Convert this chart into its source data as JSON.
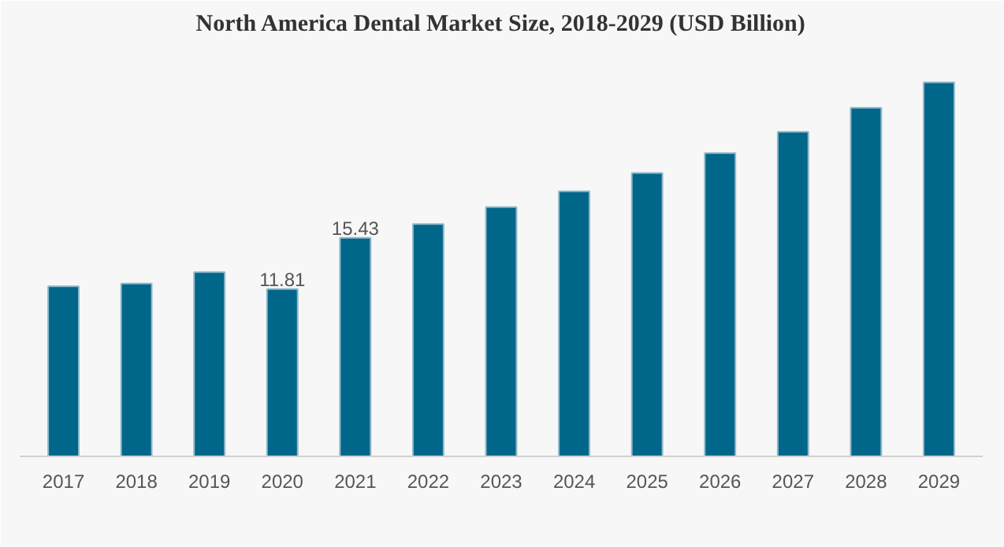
{
  "chart_data": {
    "type": "bar",
    "title": "North America Dental Market Size, 2018-2029 (USD Billion)",
    "categories": [
      "2017",
      "2018",
      "2019",
      "2020",
      "2021",
      "2022",
      "2023",
      "2024",
      "2025",
      "2026",
      "2027",
      "2028",
      "2029"
    ],
    "values": [
      12.0,
      12.2,
      13.0,
      11.81,
      15.43,
      16.4,
      17.6,
      18.7,
      20.0,
      21.4,
      22.9,
      24.6,
      26.4
    ],
    "value_labels": [
      null,
      null,
      null,
      "11.81",
      "15.43",
      null,
      null,
      null,
      null,
      null,
      null,
      null,
      null
    ],
    "color": "#00668a",
    "grid": false
  }
}
